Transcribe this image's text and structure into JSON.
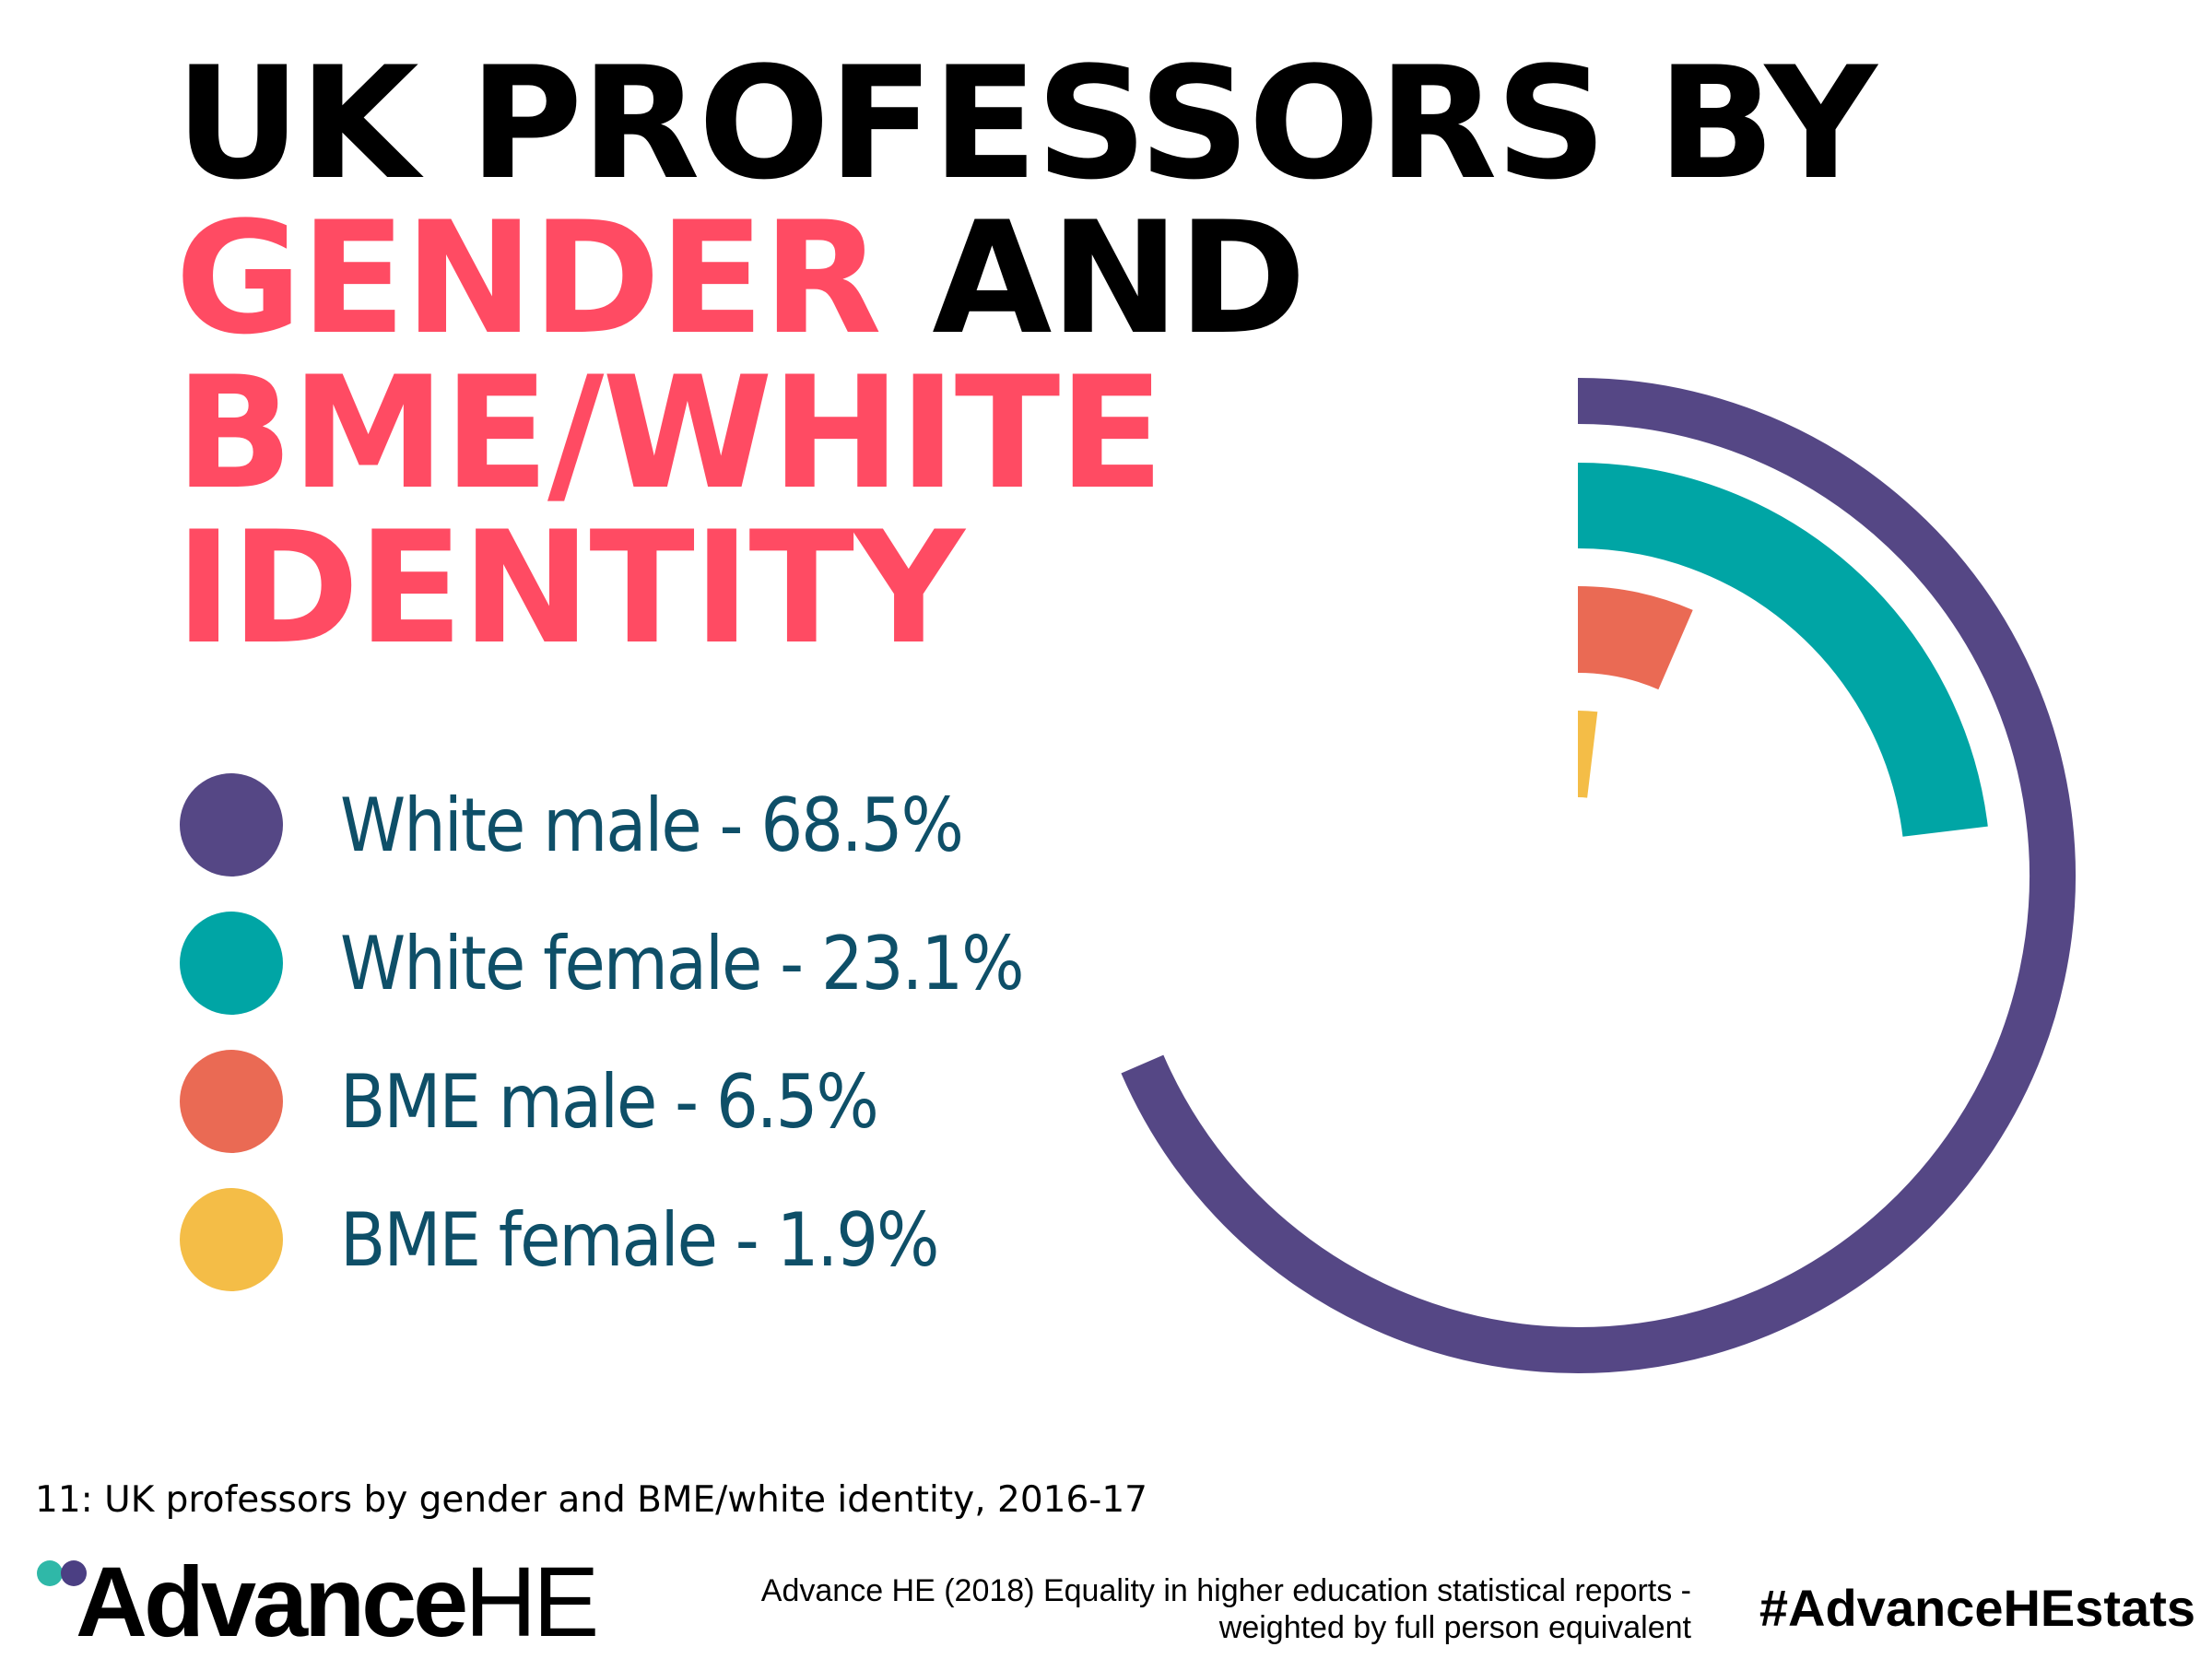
{
  "title": {
    "line1": "UK PROFESSORS BY",
    "line2_accent": "GENDER",
    "line2_rest": " AND",
    "line3": "BME/WHITE",
    "line4": "IDENTITY"
  },
  "colors": {
    "accent": "#ff4b63",
    "title_text": "#000000",
    "legend_text": "#0e4f68",
    "background": "#ffffff"
  },
  "chart_data": {
    "type": "radial bar",
    "unit": "%",
    "max": 100,
    "series": [
      {
        "name": "White male",
        "value": 68.5,
        "label": "White male - 68.5%",
        "color": "#554785"
      },
      {
        "name": "White female",
        "value": 23.1,
        "label": "White female - 23.1%",
        "color": "#00a5a5"
      },
      {
        "name": "BME male",
        "value": 6.5,
        "label": "BME male - 6.5%",
        "color": "#ea6a54"
      },
      {
        "name": "BME female",
        "value": 1.9,
        "label": "BME female - 1.9%",
        "color": "#f4bd47"
      }
    ]
  },
  "caption": "11: UK professors by gender and BME/white identity, 2016-17",
  "footer": {
    "logo_main": "Advance",
    "logo_he": "HE",
    "logo_dot_colors": [
      "#2fb8a8",
      "#4b3f83"
    ],
    "source_line1": "Advance HE (2018) Equality in higher education statistical reports -",
    "source_line2": "weighted by full person equivalent",
    "hashtag": "#AdvanceHEstats"
  }
}
